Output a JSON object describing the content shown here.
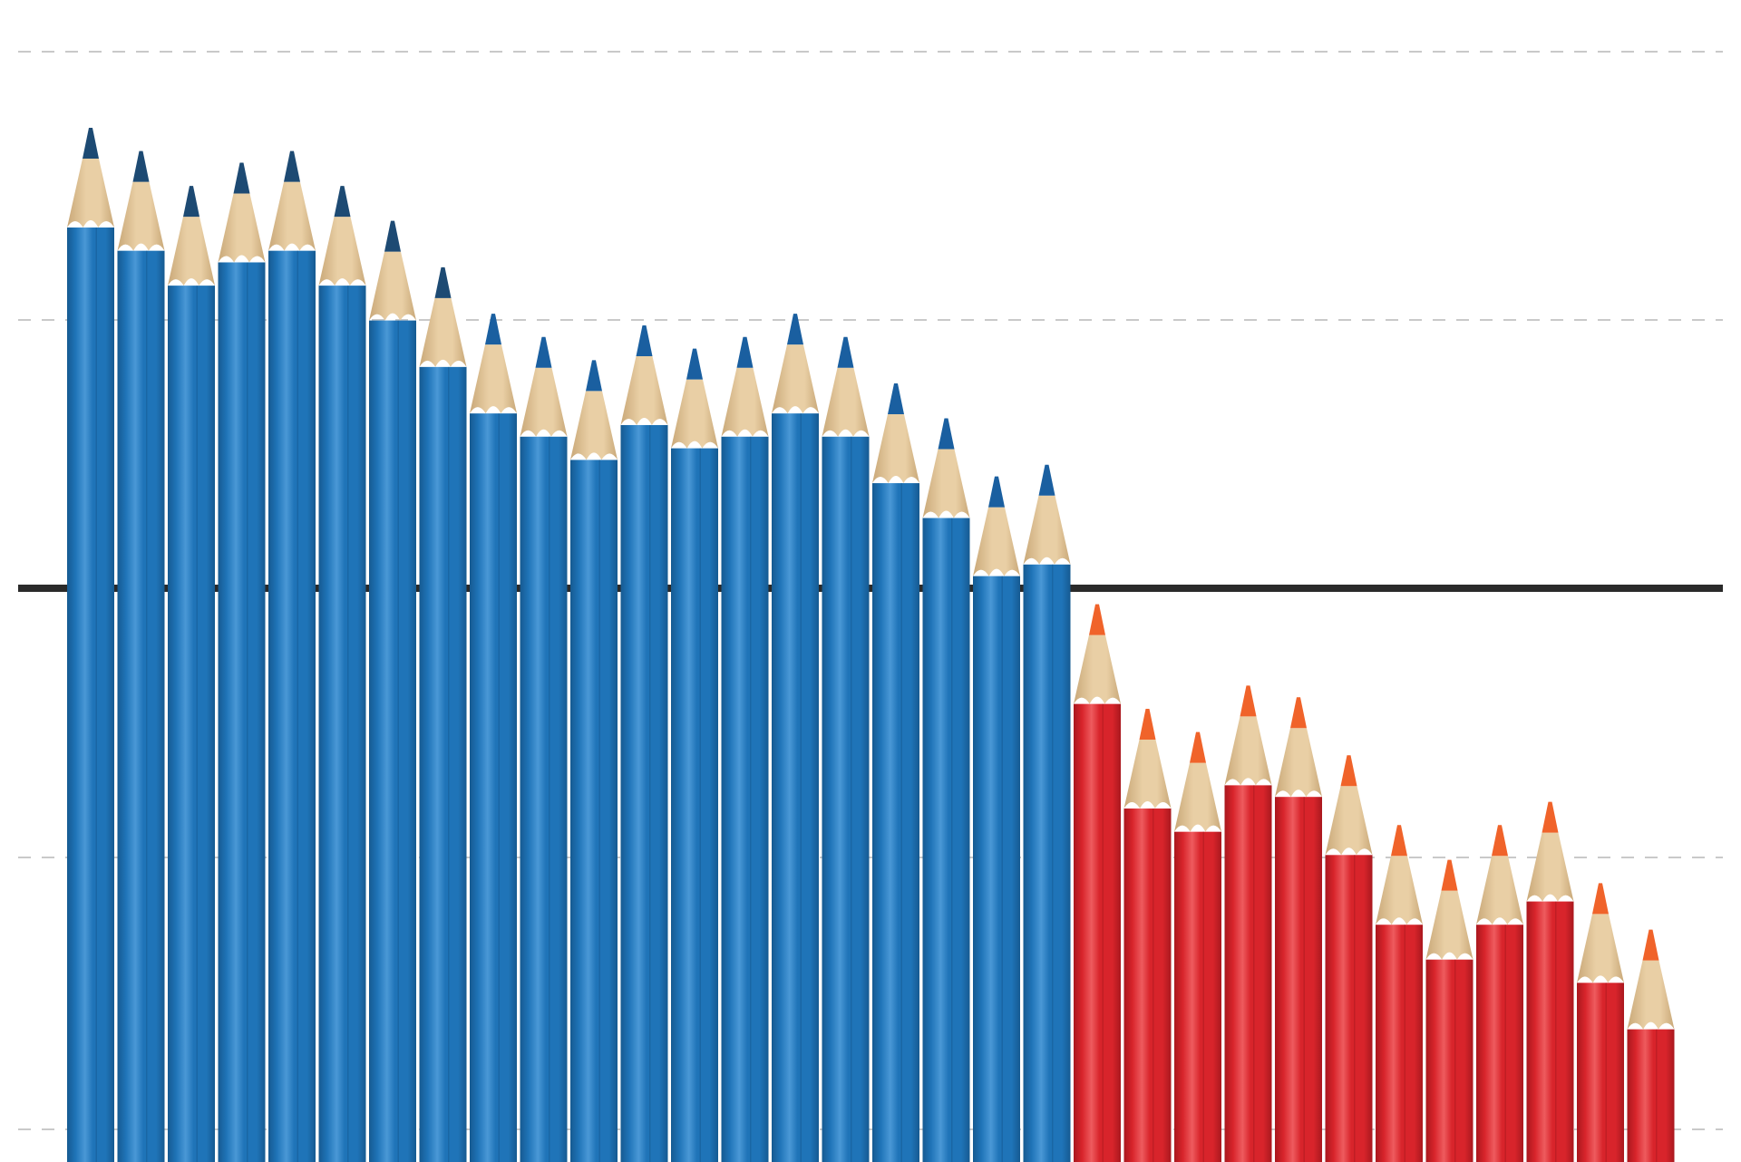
{
  "scene": {
    "background_color": "#ffffff",
    "gridline_color": "#c9c9c9",
    "baseline_color": "#2a2a2a",
    "gridline_rows": 4
  },
  "pencil_colors": {
    "blue_body": "#1f74b8",
    "blue_highlight": "#4a98d6",
    "blue_shadow": "#165a91",
    "blue_lead": "#1a5fa0",
    "dark_blue_lead": "#1d4a73",
    "red_body": "#d8242b",
    "red_highlight": "#ee5b5e",
    "red_shadow": "#a9181e",
    "red_lead": "#f0632a",
    "wood": "#e9cfa5",
    "wood_shadow": "#c9a878"
  },
  "pencils": [
    {
      "color": "blue",
      "lead": "dark",
      "tip_height": 0.89
    },
    {
      "color": "blue",
      "lead": "dark",
      "tip_height": 0.87
    },
    {
      "color": "blue",
      "lead": "dark",
      "tip_height": 0.84
    },
    {
      "color": "blue",
      "lead": "dark",
      "tip_height": 0.86
    },
    {
      "color": "blue",
      "lead": "dark",
      "tip_height": 0.87
    },
    {
      "color": "blue",
      "lead": "dark",
      "tip_height": 0.84
    },
    {
      "color": "blue",
      "lead": "dark",
      "tip_height": 0.81
    },
    {
      "color": "blue",
      "lead": "dark",
      "tip_height": 0.77
    },
    {
      "color": "blue",
      "lead": "light",
      "tip_height": 0.73
    },
    {
      "color": "blue",
      "lead": "light",
      "tip_height": 0.71
    },
    {
      "color": "blue",
      "lead": "light",
      "tip_height": 0.69
    },
    {
      "color": "blue",
      "lead": "light",
      "tip_height": 0.72
    },
    {
      "color": "blue",
      "lead": "light",
      "tip_height": 0.7
    },
    {
      "color": "blue",
      "lead": "light",
      "tip_height": 0.71
    },
    {
      "color": "blue",
      "lead": "light",
      "tip_height": 0.73
    },
    {
      "color": "blue",
      "lead": "light",
      "tip_height": 0.71
    },
    {
      "color": "blue",
      "lead": "light",
      "tip_height": 0.67
    },
    {
      "color": "blue",
      "lead": "light",
      "tip_height": 0.64
    },
    {
      "color": "blue",
      "lead": "light",
      "tip_height": 0.59
    },
    {
      "color": "blue",
      "lead": "light",
      "tip_height": 0.6
    },
    {
      "color": "red",
      "lead": "orange",
      "tip_height": 0.48
    },
    {
      "color": "red",
      "lead": "orange",
      "tip_height": 0.39
    },
    {
      "color": "red",
      "lead": "orange",
      "tip_height": 0.37
    },
    {
      "color": "red",
      "lead": "orange",
      "tip_height": 0.41
    },
    {
      "color": "red",
      "lead": "orange",
      "tip_height": 0.4
    },
    {
      "color": "red",
      "lead": "orange",
      "tip_height": 0.35
    },
    {
      "color": "red",
      "lead": "orange",
      "tip_height": 0.29
    },
    {
      "color": "red",
      "lead": "orange",
      "tip_height": 0.26
    },
    {
      "color": "red",
      "lead": "orange",
      "tip_height": 0.29
    },
    {
      "color": "red",
      "lead": "orange",
      "tip_height": 0.31
    },
    {
      "color": "red",
      "lead": "orange",
      "tip_height": 0.24
    },
    {
      "color": "red",
      "lead": "orange",
      "tip_height": 0.2
    }
  ]
}
